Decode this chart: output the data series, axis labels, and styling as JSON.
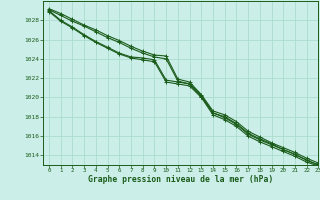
{
  "title": "Graphe pression niveau de la mer (hPa)",
  "bg_color": "#cceee8",
  "grid_color": "#aaddcc",
  "line_color": "#1a5c1a",
  "xlim": [
    -0.5,
    23
  ],
  "ylim": [
    1013.0,
    1030.0
  ],
  "yticks": [
    1014,
    1016,
    1018,
    1020,
    1022,
    1024,
    1026,
    1028
  ],
  "xticks": [
    0,
    1,
    2,
    3,
    4,
    5,
    6,
    7,
    8,
    9,
    10,
    11,
    12,
    13,
    14,
    15,
    16,
    17,
    18,
    19,
    20,
    21,
    22,
    23
  ],
  "series": [
    [
      1029.2,
      1028.7,
      1028.1,
      1027.5,
      1027.0,
      1026.4,
      1025.9,
      1025.3,
      1024.8,
      1024.4,
      1024.3,
      1021.9,
      1021.6,
      1020.3,
      1018.6,
      1018.2,
      1017.5,
      1016.5,
      1015.9,
      1015.3,
      1014.8,
      1014.3,
      1013.7,
      1013.2
    ],
    [
      1029.1,
      1028.5,
      1027.9,
      1027.4,
      1026.8,
      1026.2,
      1025.7,
      1025.1,
      1024.6,
      1024.2,
      1024.0,
      1021.7,
      1021.4,
      1020.1,
      1018.4,
      1018.0,
      1017.3,
      1016.3,
      1015.7,
      1015.2,
      1014.6,
      1014.1,
      1013.5,
      1013.0
    ],
    [
      1029.0,
      1028.0,
      1027.3,
      1026.5,
      1025.8,
      1025.2,
      1024.6,
      1024.2,
      1024.1,
      1023.9,
      1021.8,
      1021.6,
      1021.4,
      1020.2,
      1018.4,
      1017.9,
      1017.2,
      1016.2,
      1015.6,
      1015.1,
      1014.6,
      1014.1,
      1013.5,
      1013.0
    ],
    [
      1028.9,
      1027.9,
      1027.2,
      1026.4,
      1025.7,
      1025.1,
      1024.5,
      1024.1,
      1023.9,
      1023.7,
      1021.6,
      1021.4,
      1021.2,
      1020.0,
      1018.2,
      1017.7,
      1017.0,
      1016.0,
      1015.4,
      1014.9,
      1014.4,
      1013.9,
      1013.3,
      1012.9
    ]
  ]
}
